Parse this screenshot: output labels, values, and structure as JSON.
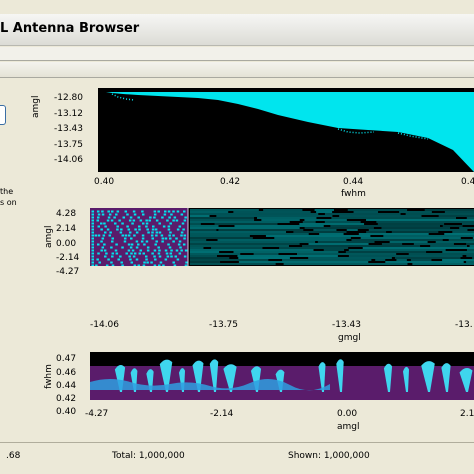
{
  "window": {
    "title": "L Antenna Browser"
  },
  "left_panel": {
    "text_lines": [
      "the",
      "s on"
    ]
  },
  "plots": [
    {
      "id": "plot1",
      "x_axis_label": "fwhm",
      "y_axis_label": "amgl",
      "x_tick_labels": [
        "0.40",
        "0.42",
        "0.44",
        "0.4"
      ],
      "y_tick_labels": [
        "-12.80",
        "-13.12",
        "-13.43",
        "-13.75",
        "-14.06"
      ]
    },
    {
      "id": "plot2",
      "x_axis_label": "gmgl",
      "y_axis_label": "amgl",
      "x_tick_labels": [
        "-14.06",
        "-13.75",
        "-13.43",
        "-13."
      ],
      "y_tick_labels": [
        "4.28",
        "2.14",
        "0.00",
        "-2.14",
        "-4.27"
      ]
    },
    {
      "id": "plot3",
      "x_axis_label": "amgl",
      "y_axis_label": "fwhm",
      "x_tick_labels": [
        "-4.27",
        "-2.14",
        "0.00",
        "2.1"
      ],
      "y_tick_labels": [
        "0.47",
        "0.46",
        "0.44",
        "0.42",
        "0.40"
      ]
    }
  ],
  "status": {
    "left_value": ".68",
    "total": "Total: 1,000,000",
    "shown": "Shown: 1,000,000"
  },
  "colors": {
    "point": "#00e5ee",
    "selection": "#5a1c6b",
    "plot_bg": "#000000"
  }
}
